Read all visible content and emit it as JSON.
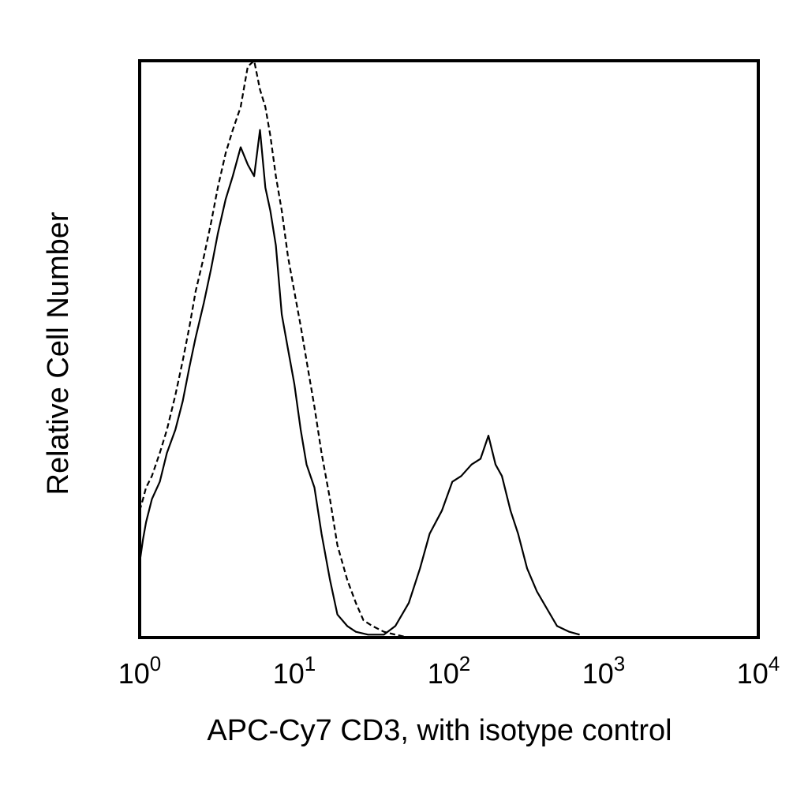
{
  "chart_data": {
    "type": "line",
    "title": "",
    "xlabel": "APC-Cy7 CD3, with isotype control",
    "ylabel": "Relative Cell Number",
    "x_scale": "log",
    "xlim": [
      1,
      10000
    ],
    "ylim": [
      0,
      100
    ],
    "grid": false,
    "legend": "none",
    "x_ticks": [
      {
        "value": 1,
        "base": "10",
        "exp": "0"
      },
      {
        "value": 10,
        "base": "10",
        "exp": "1"
      },
      {
        "value": 100,
        "base": "10",
        "exp": "2"
      },
      {
        "value": 1000,
        "base": "10",
        "exp": "3"
      },
      {
        "value": 10000,
        "base": "10",
        "exp": "4"
      }
    ],
    "series": [
      {
        "style": "solid",
        "color": "#000000",
        "x": [
          1.0,
          1.05,
          1.1,
          1.2,
          1.35,
          1.5,
          1.7,
          1.9,
          2.1,
          2.3,
          2.6,
          2.9,
          3.2,
          3.6,
          4.0,
          4.5,
          5.0,
          5.5,
          6.0,
          6.5,
          7.0,
          7.6,
          8.3,
          9.1,
          10.0,
          11.0,
          12.0,
          13.5,
          15.0,
          17.0,
          19.0,
          22.0,
          25.0,
          30.0,
          38.0,
          45.0,
          55.0,
          65.0,
          75.0,
          90.0,
          105.0,
          120.0,
          140.0,
          160.0,
          180.0,
          200.0,
          220.0,
          250.0,
          280.0,
          320.0,
          370.0,
          430.0,
          500.0,
          600.0,
          700.0
        ],
        "values": [
          13,
          17,
          20,
          24,
          27,
          32,
          36,
          41,
          47,
          52,
          58,
          64,
          70,
          76,
          80,
          85,
          82,
          80,
          88,
          78,
          74,
          68,
          56,
          50,
          44,
          36,
          30,
          26,
          18,
          10,
          4,
          2,
          1,
          0.5,
          0.5,
          2,
          6,
          12,
          18,
          22,
          27,
          28,
          30,
          31,
          35,
          30,
          28,
          22,
          18,
          12,
          8,
          5,
          2,
          1,
          0.5
        ]
      },
      {
        "style": "dashed",
        "color": "#000000",
        "x": [
          1.0,
          1.05,
          1.1,
          1.2,
          1.35,
          1.5,
          1.7,
          1.9,
          2.1,
          2.3,
          2.6,
          2.9,
          3.2,
          3.6,
          4.0,
          4.5,
          5.0,
          5.5,
          6.0,
          6.5,
          7.0,
          7.6,
          8.3,
          9.1,
          10.0,
          11.0,
          12.0,
          13.5,
          15.0,
          17.0,
          19.0,
          22.0,
          25.0,
          28.0,
          32.0,
          38.0,
          45.0,
          55.0
        ],
        "values": [
          22,
          24,
          26,
          28,
          32,
          36,
          42,
          48,
          54,
          60,
          66,
          72,
          78,
          84,
          88,
          92,
          99,
          100,
          95,
          92,
          87,
          80,
          74,
          66,
          60,
          54,
          48,
          40,
          32,
          24,
          16,
          10,
          6,
          3,
          2,
          1,
          0.5,
          0
        ]
      }
    ]
  }
}
